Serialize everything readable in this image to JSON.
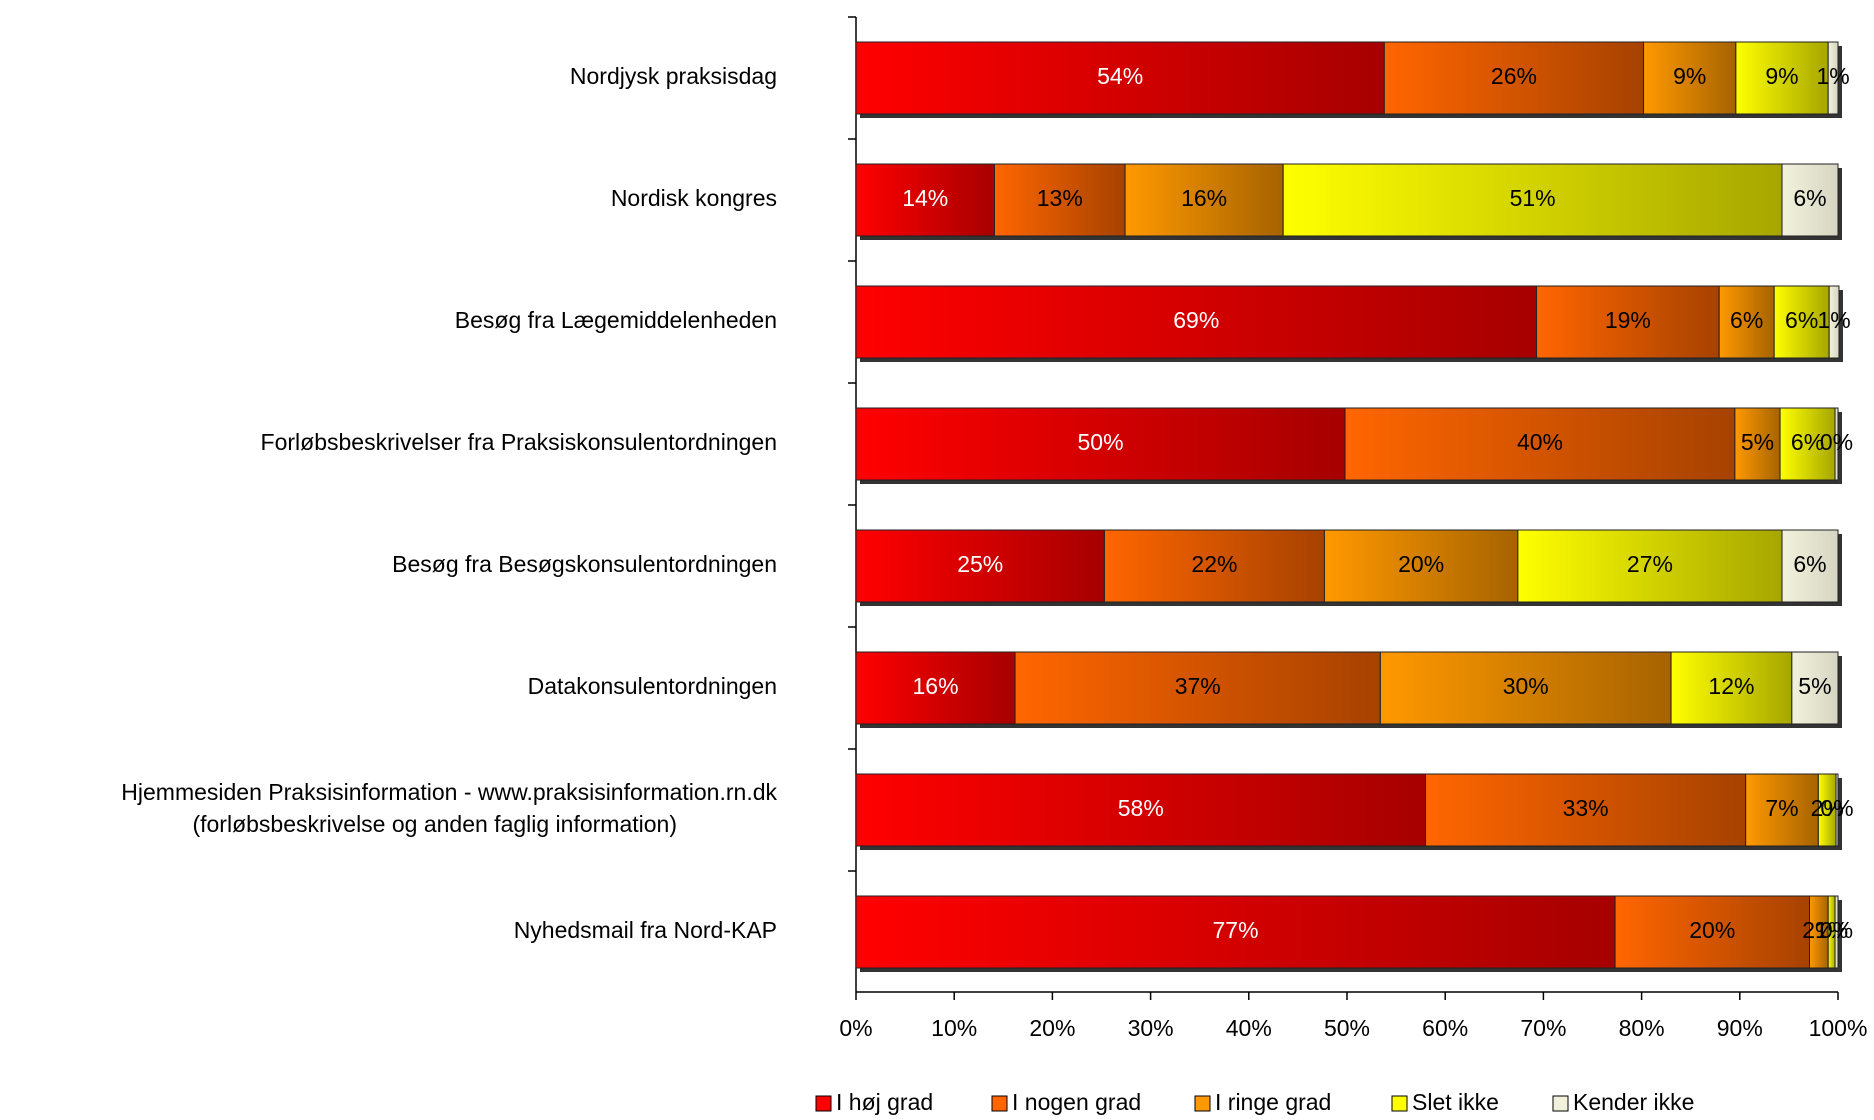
{
  "chart_data": {
    "type": "stacked_bar_horizontal",
    "categories": [
      "Nordjysk praksisdag",
      "Nordisk kongres",
      "Besøg fra Lægemiddelenheden",
      "Forløbsbeskrivelser fra Praksiskonsulentordningen",
      "Besøg fra Besøgskonsulentordningen",
      "Datakonsulentordningen",
      "Hjemmesiden Praksisinformation - www.praksisinformation.rn.dk\n(forløbsbeskrivelse og anden faglig information)",
      "Nyhedsmail fra Nord-KAP"
    ],
    "series": [
      {
        "name": "I høj grad",
        "color": "#ff0000",
        "values": [
          53.8,
          14.1,
          69.3,
          49.8,
          25.3,
          16.2,
          58.0,
          77.3
        ],
        "value_labels": [
          "54%",
          "14%",
          "69%",
          "50%",
          "25%",
          "16%",
          "58%",
          "77%"
        ]
      },
      {
        "name": "I nogen grad",
        "color": "#ff6600",
        "values": [
          26.4,
          13.3,
          18.6,
          39.7,
          22.4,
          37.2,
          32.6,
          19.8
        ],
        "value_labels": [
          "26%",
          "13%",
          "19%",
          "40%",
          "22%",
          "37%",
          "33%",
          "20%"
        ]
      },
      {
        "name": "I ringe grad",
        "color": "#ff9900",
        "values": [
          9.4,
          16.1,
          5.6,
          4.6,
          19.7,
          29.6,
          7.4,
          1.9
        ],
        "value_labels": [
          "9%",
          "16%",
          "6%",
          "5%",
          "20%",
          "30%",
          "7%",
          "2%"
        ]
      },
      {
        "name": "Slet ikke",
        "color": "#ffff00",
        "values": [
          9.4,
          50.8,
          5.6,
          5.6,
          26.9,
          12.3,
          1.8,
          0.7
        ],
        "value_labels": [
          "9%",
          "51%",
          "6%",
          "6%",
          "27%",
          "12%",
          "2%",
          "1%"
        ]
      },
      {
        "name": "Kender ikke",
        "color": "#f2f2dc",
        "values": [
          1.0,
          5.7,
          1.0,
          0.3,
          5.7,
          4.7,
          0.2,
          0.3
        ],
        "value_labels": [
          "1%",
          "6%",
          "1%",
          "0%",
          "6%",
          "5%",
          "0%",
          "0%"
        ]
      }
    ],
    "xlim": [
      0,
      100
    ],
    "xticks": [
      {
        "value": 0,
        "label": "0%"
      },
      {
        "value": 10,
        "label": "10%"
      },
      {
        "value": 20,
        "label": "20%"
      },
      {
        "value": 30,
        "label": "30%"
      },
      {
        "value": 40,
        "label": "40%"
      },
      {
        "value": 50,
        "label": "50%"
      },
      {
        "value": 60,
        "label": "60%"
      },
      {
        "value": 70,
        "label": "70%"
      },
      {
        "value": 80,
        "label": "80%"
      },
      {
        "value": 90,
        "label": "90%"
      },
      {
        "value": 100,
        "label": "100%"
      }
    ],
    "legend": "bottom"
  }
}
